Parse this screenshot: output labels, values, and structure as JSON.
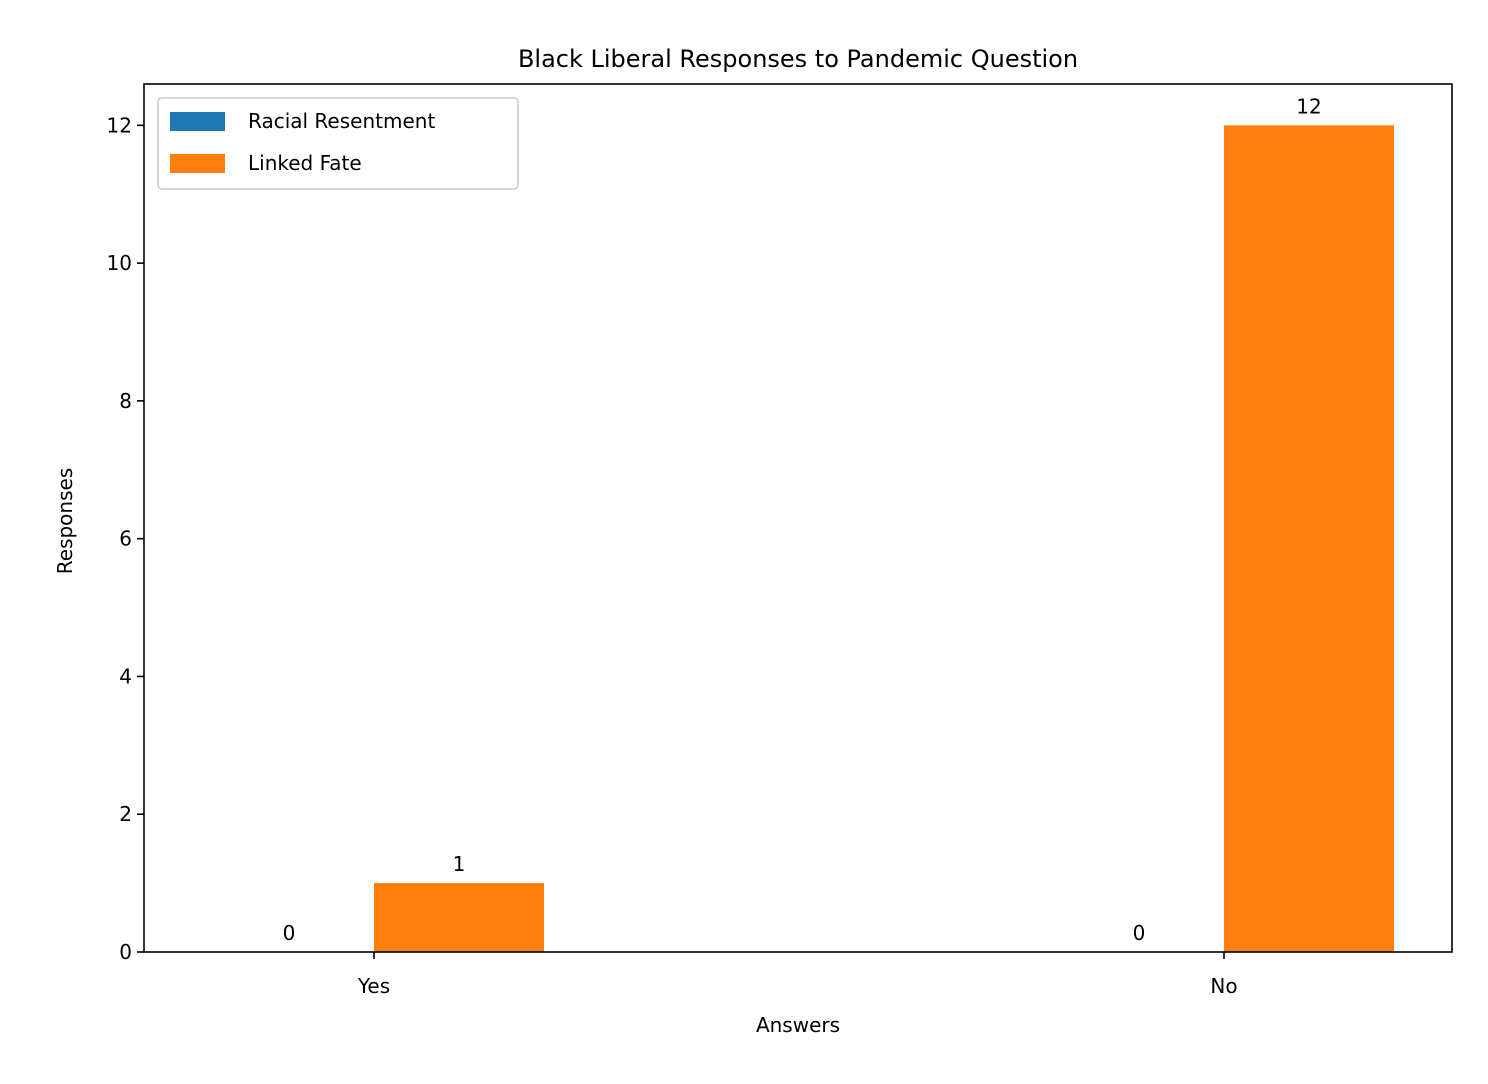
{
  "chart_data": {
    "type": "bar",
    "title": "Black Liberal Responses to Pandemic Question",
    "xlabel": "Answers",
    "ylabel": "Responses",
    "categories": [
      "Yes",
      "No"
    ],
    "series": [
      {
        "name": "Racial Resentment",
        "values": [
          0,
          0
        ],
        "color": "#1f77b4"
      },
      {
        "name": "Linked Fate",
        "values": [
          1,
          12
        ],
        "color": "#ff7f0e"
      }
    ],
    "ylim": [
      0,
      12.6
    ],
    "yticks": [
      0,
      2,
      4,
      6,
      8,
      10,
      12
    ],
    "grid": false,
    "legend_position": "top-left"
  }
}
